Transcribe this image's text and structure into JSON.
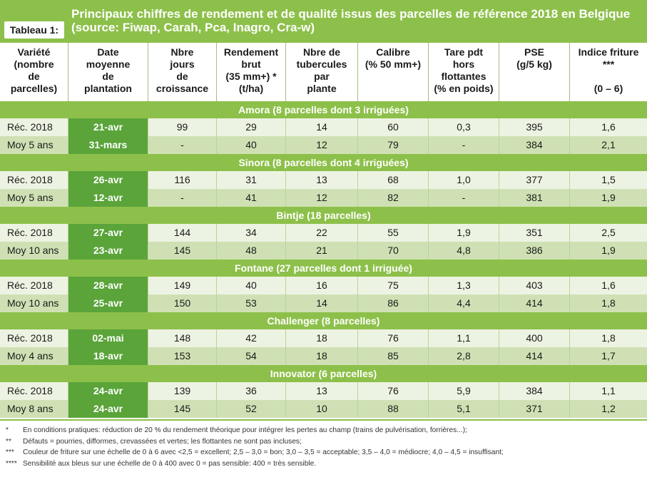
{
  "title": {
    "tab_label": "Tableau 1:",
    "line1": "Principaux chiffres de rendement et de qualité issus des parcelles de référence 2018 en Belgique",
    "line2": "(source: Fiwap, Carah, Pca, Inagro, Cra-w)"
  },
  "columns": [
    {
      "lines": [
        "Variété",
        "(nombre",
        "de",
        "parcelles)"
      ]
    },
    {
      "lines": [
        "Date",
        "moyenne",
        "de",
        "plantation"
      ]
    },
    {
      "lines": [
        "Nbre",
        "jours",
        "de",
        "croissance"
      ]
    },
    {
      "lines": [
        "Rendement",
        "brut",
        "(35 mm+) *",
        "(t/ha)"
      ]
    },
    {
      "lines": [
        "Nbre de",
        "tubercules",
        "par",
        "plante"
      ]
    },
    {
      "lines": [
        "Calibre",
        "(% 50 mm+)"
      ]
    },
    {
      "lines": [
        "Tare pdt",
        "hors",
        "flottantes",
        "(% en poids)"
      ]
    },
    {
      "lines": [
        "PSE",
        "(g/5 kg)"
      ]
    },
    {
      "lines": [
        "Indice friture",
        "***",
        "",
        "(0 – 6)"
      ]
    }
  ],
  "groups": [
    {
      "title": "Amora (8 parcelles dont 3 irriguées)",
      "rows": [
        [
          "Réc. 2018",
          "21-avr",
          "99",
          "29",
          "14",
          "60",
          "0,3",
          "395",
          "1,6"
        ],
        [
          "Moy 5 ans",
          "31-mars",
          "-",
          "40",
          "12",
          "79",
          "-",
          "384",
          "2,1"
        ]
      ]
    },
    {
      "title": "Sinora (8 parcelles dont 4 irriguées)",
      "rows": [
        [
          "Réc. 2018",
          "26-avr",
          "116",
          "31",
          "13",
          "68",
          "1,0",
          "377",
          "1,5"
        ],
        [
          "Moy 5 ans",
          "12-avr",
          "-",
          "41",
          "12",
          "82",
          "-",
          "381",
          "1,9"
        ]
      ]
    },
    {
      "title": "Bintje (18 parcelles)",
      "rows": [
        [
          "Réc. 2018",
          "27-avr",
          "144",
          "34",
          "22",
          "55",
          "1,9",
          "351",
          "2,5"
        ],
        [
          "Moy 10 ans",
          "23-avr",
          "145",
          "48",
          "21",
          "70",
          "4,8",
          "386",
          "1,9"
        ]
      ]
    },
    {
      "title": "Fontane (27 parcelles dont 1 irriguée)",
      "rows": [
        [
          "Réc. 2018",
          "28-avr",
          "149",
          "40",
          "16",
          "75",
          "1,3",
          "403",
          "1,6"
        ],
        [
          "Moy 10 ans",
          "25-avr",
          "150",
          "53",
          "14",
          "86",
          "4,4",
          "414",
          "1,8"
        ]
      ]
    },
    {
      "title": "Challenger (8 parcelles)",
      "rows": [
        [
          "Réc. 2018",
          "02-mai",
          "148",
          "42",
          "18",
          "76",
          "1,1",
          "400",
          "1,8"
        ],
        [
          "Moy 4 ans",
          "18-avr",
          "153",
          "54",
          "18",
          "85",
          "2,8",
          "414",
          "1,7"
        ]
      ]
    },
    {
      "title": "Innovator (6 parcelles)",
      "rows": [
        [
          "Réc. 2018",
          "24-avr",
          "139",
          "36",
          "13",
          "76",
          "5,9",
          "384",
          "1,1"
        ],
        [
          "Moy 8 ans",
          "24-avr",
          "145",
          "52",
          "10",
          "88",
          "5,1",
          "371",
          "1,2"
        ]
      ]
    }
  ],
  "footnotes": [
    {
      "marker": "*",
      "text": "En conditions pratiques: réduction de 20 % du rendement théorique pour intégrer les pertes au champ (trains de pulvérisation, forrières...);"
    },
    {
      "marker": "**",
      "text": "Défauts = pourries, difformes, crevassées et vertes; les flottantes ne sont pas incluses;"
    },
    {
      "marker": "***",
      "text": "Couleur de friture sur une échelle de 0 à 6 avec <2,5 = excellent; 2,5 – 3,0 = bon; 3,0 – 3,5 = acceptable; 3,5 – 4,0 = médiocre; 4,0 – 4,5 = insuffisant;"
    },
    {
      "marker": "****",
      "text": "Sensibilité aux bleus sur une échelle de 0 à 400 avec 0 = pas sensible: 400 = très sensible."
    }
  ],
  "colors": {
    "band_green": "#8dc04a",
    "date_green": "#5aa43a",
    "row_light": "#edf3e2",
    "row_dark": "#cfe1b4"
  }
}
